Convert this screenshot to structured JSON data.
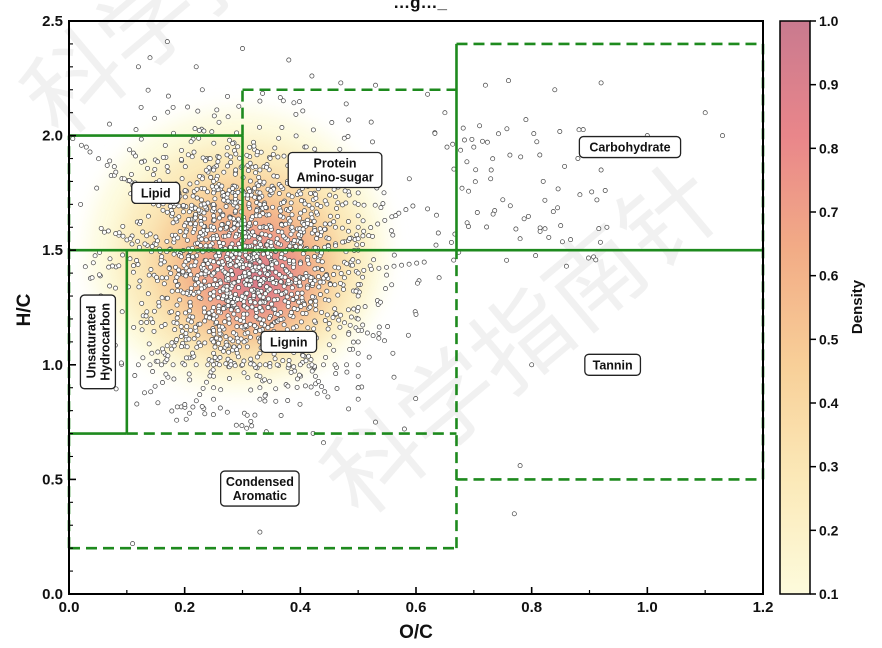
{
  "chart_data": {
    "type": "scatter",
    "title": "…g…_",
    "xlabel": "O/C",
    "ylabel": "H/C",
    "xlim": [
      0.0,
      1.2
    ],
    "ylim": [
      0.0,
      2.5
    ],
    "x_ticks": [
      "0.0",
      "0.2",
      "0.4",
      "0.6",
      "0.8",
      "1.0",
      "1.2"
    ],
    "y_ticks": [
      "0.0",
      "0.5",
      "1.0",
      "1.5",
      "2.0",
      "2.5"
    ],
    "grid": false,
    "colorbar": {
      "label": "Density",
      "range": [
        0.1,
        1.0
      ],
      "ticks": [
        "0.1",
        "0.2",
        "0.3",
        "0.4",
        "0.5",
        "0.6",
        "0.7",
        "0.8",
        "0.9",
        "1.0"
      ],
      "colors": [
        "#fdfbdc",
        "#fbe9b8",
        "#f8cf98",
        "#f2ac86",
        "#e9868a",
        "#d06f86"
      ]
    },
    "density_hotspot": {
      "x": 0.33,
      "y": 1.35
    },
    "region_line_color": "#1e8a1e",
    "regions": [
      {
        "name": "Lipid",
        "o_c": [
          0.0,
          0.3
        ],
        "h_c": [
          1.5,
          2.0
        ],
        "label": "Lipid",
        "label_at": [
          0.15,
          1.75
        ]
      },
      {
        "name": "Protein/Amino-sugar",
        "o_c": [
          0.3,
          0.67
        ],
        "h_c": [
          1.5,
          2.2
        ],
        "label": [
          "Protein",
          "Amino-sugar"
        ],
        "label_at": [
          0.46,
          1.85
        ]
      },
      {
        "name": "Carbohydrate",
        "o_c": [
          0.67,
          1.2
        ],
        "h_c": [
          1.5,
          2.4
        ],
        "label": "Carbohydrate",
        "label_at": [
          0.97,
          1.95
        ]
      },
      {
        "name": "Unsaturated Hydrocarbon",
        "o_c": [
          0.0,
          0.1
        ],
        "h_c": [
          0.7,
          1.5
        ],
        "label": [
          "Unsaturated",
          "Hydrocarbon"
        ],
        "label_at": [
          0.05,
          1.1
        ]
      },
      {
        "name": "Lignin",
        "o_c": [
          0.1,
          0.67
        ],
        "h_c": [
          0.7,
          1.5
        ],
        "label": "Lignin",
        "label_at": [
          0.38,
          1.1
        ]
      },
      {
        "name": "Tannin",
        "o_c": [
          0.67,
          1.2
        ],
        "h_c": [
          0.5,
          1.5
        ],
        "label": "Tannin",
        "label_at": [
          0.94,
          1.0
        ]
      },
      {
        "name": "Condensed Aromatic",
        "o_c": [
          0.0,
          0.67
        ],
        "h_c": [
          0.2,
          0.7
        ],
        "label": [
          "Condensed",
          "Aromatic"
        ],
        "label_at": [
          0.33,
          0.46
        ]
      }
    ],
    "outlier_points": [
      [
        0.12,
        2.3
      ],
      [
        0.14,
        2.34
      ],
      [
        0.17,
        2.41
      ],
      [
        0.22,
        2.3
      ],
      [
        0.3,
        2.38
      ],
      [
        0.38,
        2.33
      ],
      [
        0.42,
        2.26
      ],
      [
        0.47,
        2.23
      ],
      [
        0.53,
        2.22
      ],
      [
        0.62,
        2.18
      ],
      [
        0.65,
        2.1
      ],
      [
        0.72,
        2.22
      ],
      [
        0.76,
        2.24
      ],
      [
        0.84,
        2.2
      ],
      [
        0.92,
        2.23
      ],
      [
        0.79,
        2.07
      ],
      [
        1.1,
        2.1
      ],
      [
        1.13,
        2.0
      ],
      [
        1.0,
        2.0
      ],
      [
        0.78,
        1.55
      ],
      [
        0.86,
        1.43
      ],
      [
        0.92,
        1.85
      ],
      [
        0.93,
        1.6
      ],
      [
        0.8,
        1.0
      ],
      [
        0.78,
        0.56
      ],
      [
        0.77,
        0.35
      ],
      [
        0.11,
        0.22
      ],
      [
        0.33,
        0.27
      ],
      [
        0.44,
        0.66
      ],
      [
        0.53,
        0.75
      ],
      [
        0.58,
        0.72
      ],
      [
        0.03,
        1.95
      ],
      [
        0.02,
        1.7
      ],
      [
        0.04,
        1.38
      ],
      [
        0.05,
        1.25
      ],
      [
        0.07,
        2.05
      ],
      [
        0.62,
        1.68
      ],
      [
        0.64,
        1.38
      ],
      [
        0.6,
        1.22
      ],
      [
        0.56,
        1.05
      ],
      [
        0.5,
        0.9
      ],
      [
        0.7,
        1.95
      ],
      [
        0.73,
        1.85
      ],
      [
        0.75,
        1.72
      ],
      [
        0.82,
        1.8
      ],
      [
        0.88,
        1.9
      ]
    ]
  },
  "watermark": "科学指南针"
}
